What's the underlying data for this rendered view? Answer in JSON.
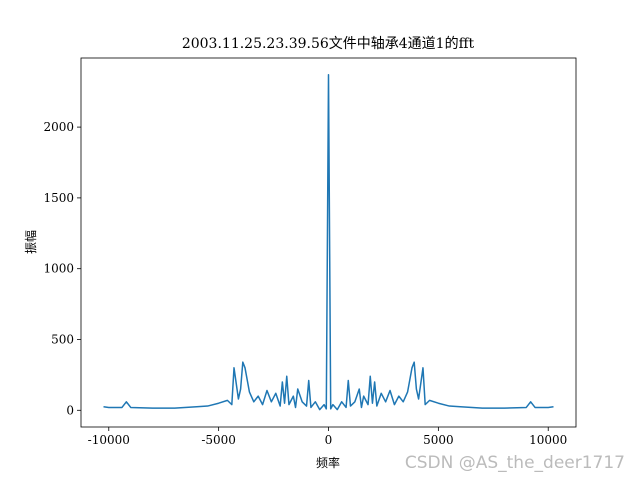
{
  "chart_data": {
    "type": "line",
    "title": "2003.11.25.23.39.56文件中轴承4通道1的fft",
    "x_label": "频率",
    "y_label": "振幅",
    "watermark": "CSDN @AS_the_deer1717",
    "color": "#1f77b4",
    "x": [
      -10240,
      -10000,
      -9400,
      -9200,
      -9000,
      -8000,
      -7000,
      -6000,
      -5500,
      -5000,
      -4600,
      -4400,
      -4300,
      -4100,
      -4000,
      -3900,
      -3800,
      -3600,
      -3400,
      -3200,
      -3000,
      -2800,
      -2600,
      -2400,
      -2200,
      -2100,
      -2000,
      -1900,
      -1800,
      -1600,
      -1500,
      -1400,
      -1200,
      -1000,
      -900,
      -800,
      -600,
      -400,
      -200,
      -100,
      0,
      100,
      200,
      400,
      600,
      800,
      900,
      1000,
      1200,
      1400,
      1500,
      1600,
      1800,
      1900,
      2000,
      2100,
      2200,
      2400,
      2600,
      2800,
      3000,
      3200,
      3400,
      3600,
      3800,
      3900,
      4000,
      4100,
      4300,
      4400,
      4600,
      5000,
      5500,
      6000,
      7000,
      8000,
      9000,
      9200,
      9400,
      10000,
      10240
    ],
    "values": [
      25,
      20,
      20,
      60,
      20,
      15,
      15,
      25,
      30,
      50,
      70,
      40,
      300,
      80,
      150,
      340,
      300,
      130,
      60,
      100,
      40,
      140,
      60,
      120,
      30,
      200,
      50,
      240,
      40,
      100,
      20,
      150,
      60,
      30,
      210,
      20,
      60,
      5,
      40,
      10,
      2370,
      10,
      40,
      5,
      60,
      20,
      210,
      30,
      60,
      150,
      20,
      100,
      40,
      240,
      50,
      200,
      30,
      120,
      60,
      140,
      40,
      100,
      60,
      130,
      300,
      340,
      150,
      80,
      300,
      40,
      70,
      50,
      30,
      25,
      15,
      15,
      20,
      60,
      20,
      20,
      25
    ],
    "xlim": [
      -11264,
      11264
    ],
    "ylim": [
      -118,
      2488
    ],
    "xticks": [
      -10000,
      -5000,
      0,
      5000,
      10000
    ],
    "yticks": [
      0,
      500,
      1000,
      1500,
      2000
    ]
  }
}
